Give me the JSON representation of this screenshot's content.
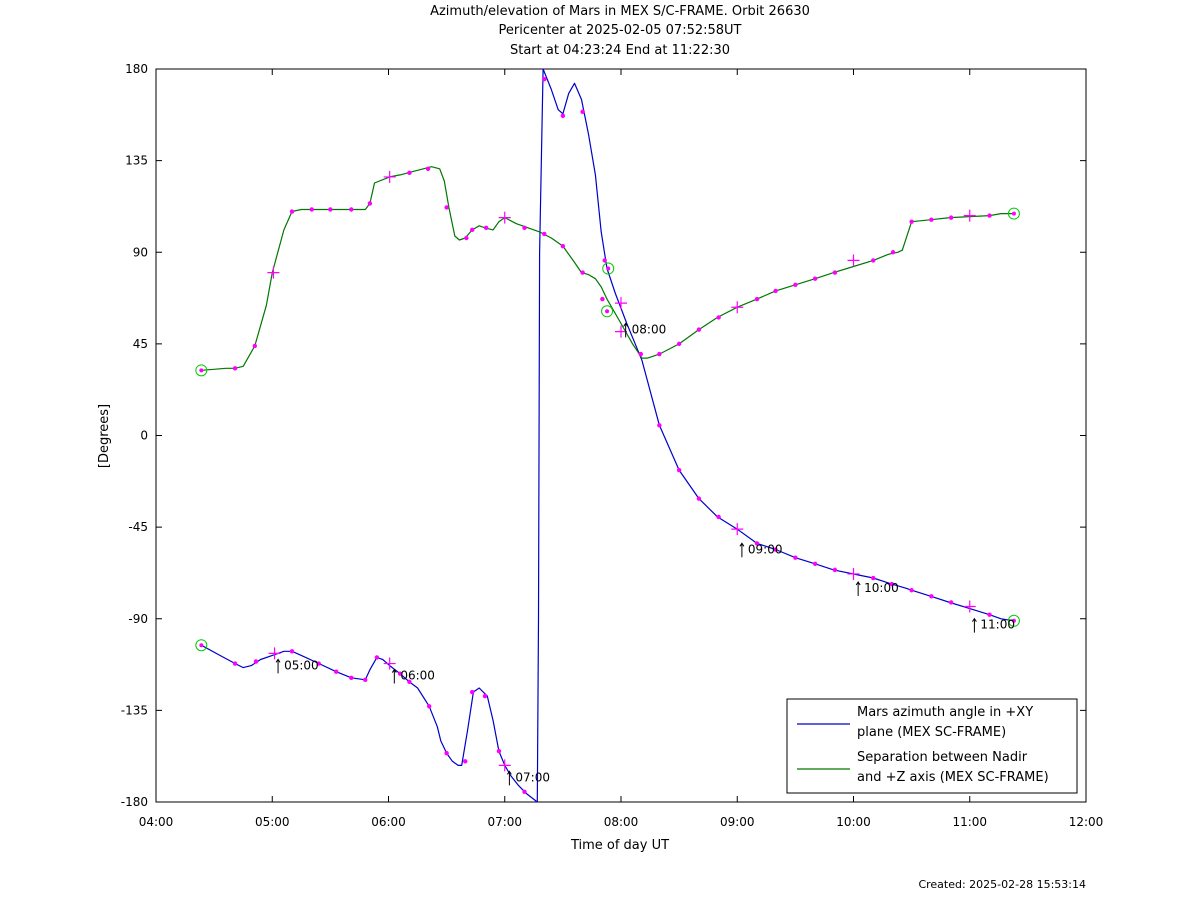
{
  "chart_data": {
    "type": "line",
    "title": [
      "Azimuth/elevation of Mars in MEX S/C-FRAME.  Orbit 26630",
      "Pericenter at 2025-02-05 07:52:58UT",
      "Start at 04:23:24 End at 11:22:30"
    ],
    "xlabel": "Time of day UT",
    "ylabel": "[Degrees]",
    "xlim": [
      4.0,
      12.0
    ],
    "ylim": [
      -180,
      180
    ],
    "xticks": [
      4,
      5,
      6,
      7,
      8,
      9,
      10,
      11,
      12
    ],
    "xtick_labels": [
      "04:00",
      "05:00",
      "06:00",
      "07:00",
      "08:00",
      "09:00",
      "10:00",
      "11:00",
      "12:00"
    ],
    "yticks": [
      180,
      135,
      90,
      45,
      0,
      -45,
      -90,
      -135,
      -180
    ],
    "ytick_labels": [
      "180",
      "135",
      "90",
      "45",
      "0",
      "-45",
      "-90",
      "-135",
      "-180"
    ],
    "grid": false,
    "legend_placement": "bottom-right",
    "series": [
      {
        "name": "Mars azimuth angle in +XY plane (MEX SC-FRAME)",
        "legend_lines": [
          "Mars azimuth angle in +XY",
          "plane (MEX SC-FRAME)"
        ],
        "color": "#0000cc",
        "segments": [
          {
            "x": [
              4.39,
              4.55,
              4.68,
              4.75,
              4.82,
              4.9,
              5.0,
              5.1,
              5.17,
              5.25,
              5.4,
              5.55,
              5.68,
              5.8,
              5.84,
              5.9,
              5.95,
              6.01,
              6.1,
              6.18,
              6.25,
              6.35,
              6.42,
              6.45,
              6.5,
              6.55,
              6.6,
              6.63,
              6.68,
              6.73,
              6.78,
              6.85,
              6.9,
              6.95,
              7.0,
              7.05,
              7.12,
              7.19,
              7.28
            ],
            "y": [
              -103,
              -108,
              -112,
              -114,
              -113,
              -110,
              -108,
              -106,
              -106,
              -108,
              -112,
              -116,
              -119,
              -120,
              -115,
              -109,
              -110,
              -113,
              -117,
              -121,
              -124,
              -133,
              -143,
              -150,
              -156,
              -160,
              -162,
              -162,
              -145,
              -126,
              -124,
              -128,
              -140,
              -155,
              -162,
              -167,
              -172,
              -176,
              -180
            ]
          },
          {
            "x": [
              7.28,
              7.29,
              7.3,
              7.33,
              7.4,
              7.46,
              7.5,
              7.55,
              7.6,
              7.66,
              7.72,
              7.78,
              7.83,
              7.88,
              7.95,
              8.05,
              8.18,
              8.33,
              8.5,
              8.67,
              8.83,
              9.0,
              9.17,
              9.33,
              9.5,
              9.67,
              9.83,
              10.0,
              10.17,
              10.33,
              10.45,
              10.5,
              10.67,
              10.83,
              11.0,
              11.17,
              11.27,
              11.38
            ],
            "y": [
              -180,
              -90,
              90,
              180,
              170,
              160,
              158,
              168,
              173,
              165,
              148,
              128,
              100,
              82,
              70,
              55,
              37,
              5,
              -17,
              -31,
              -40,
              -46,
              -53,
              -56,
              -60,
              -63,
              -66,
              -68,
              -70,
              -73,
              -75,
              -76,
              -79,
              -82,
              -85,
              -88,
              -90,
              -91
            ]
          }
        ]
      },
      {
        "name": "Separation between Nadir and +Z axis (MEX SC-FRAME)",
        "legend_lines": [
          "Separation between Nadir",
          "and +Z axis (MEX SC-FRAME)"
        ],
        "color": "#007700",
        "segments": [
          {
            "x": [
              4.39,
              4.5,
              4.6,
              4.68,
              4.75,
              4.85,
              4.95,
              5.0,
              5.1,
              5.17,
              5.25,
              5.4,
              5.55,
              5.68,
              5.8,
              5.84,
              5.88,
              6.01,
              6.1,
              6.2,
              6.3,
              6.37,
              6.44,
              6.48,
              6.52,
              6.57,
              6.61,
              6.66,
              6.72,
              6.78,
              6.83,
              6.9,
              6.95,
              7.0,
              7.1,
              7.2,
              7.3,
              7.4,
              7.5,
              7.6,
              7.66,
              7.72,
              7.78,
              7.83,
              7.88,
              8.0,
              8.1,
              8.18,
              8.23,
              8.33,
              8.5,
              8.67,
              8.83,
              9.0,
              9.17,
              9.33,
              9.5,
              9.67,
              9.83,
              10.0,
              10.17,
              10.3,
              10.38,
              10.42,
              10.5,
              10.67,
              10.83,
              11.0,
              11.17,
              11.27,
              11.38
            ],
            "y": [
              32,
              32.5,
              33,
              33,
              34,
              44,
              64,
              80,
              101,
              110,
              111,
              111,
              111,
              111,
              111,
              114,
              124,
              127,
              128,
              129.5,
              131,
              132,
              131,
              125,
              112,
              98,
              96,
              97,
              101,
              103,
              102,
              101,
              105,
              107,
              104,
              102,
              100,
              97,
              93,
              85,
              80,
              79,
              77,
              73,
              67,
              55,
              45,
              38,
              38,
              40,
              45,
              52,
              58,
              63,
              67,
              71,
              74,
              77,
              80,
              83,
              86,
              89,
              90,
              91,
              105,
              106,
              107,
              107.5,
              108,
              109,
              109
            ]
          }
        ]
      }
    ],
    "markers": {
      "dots_blue": [
        [
          4.68,
          -112
        ],
        [
          4.86,
          -111
        ],
        [
          5.17,
          -106
        ],
        [
          5.4,
          -112
        ],
        [
          5.55,
          -116
        ],
        [
          5.68,
          -119
        ],
        [
          5.8,
          -120
        ],
        [
          5.9,
          -109
        ],
        [
          6.1,
          -117
        ],
        [
          6.18,
          -121
        ],
        [
          6.35,
          -133
        ],
        [
          6.5,
          -156
        ],
        [
          6.66,
          -160
        ],
        [
          6.72,
          -126
        ],
        [
          6.83,
          -128
        ],
        [
          6.95,
          -155
        ],
        [
          7.17,
          -175
        ],
        [
          7.34,
          175
        ],
        [
          7.5,
          157
        ],
        [
          7.67,
          159
        ],
        [
          7.86,
          86
        ],
        [
          8.17,
          40
        ],
        [
          8.33,
          5
        ],
        [
          8.5,
          -17
        ],
        [
          8.67,
          -31
        ],
        [
          8.84,
          -40
        ],
        [
          9.17,
          -53
        ],
        [
          9.33,
          -56
        ],
        [
          9.5,
          -60
        ],
        [
          9.67,
          -63
        ],
        [
          9.84,
          -66
        ],
        [
          10.17,
          -70
        ],
        [
          10.33,
          -73
        ],
        [
          10.5,
          -76
        ],
        [
          10.67,
          -79
        ],
        [
          10.84,
          -82
        ],
        [
          11.17,
          -88
        ]
      ],
      "plus_blue": [
        [
          5.02,
          -107
        ],
        [
          6.01,
          -112
        ],
        [
          7.0,
          -162
        ],
        [
          8.0,
          51
        ],
        [
          9.0,
          -46
        ],
        [
          10.0,
          -68
        ],
        [
          11.0,
          -84
        ]
      ],
      "dots_green": [
        [
          4.68,
          33
        ],
        [
          4.85,
          44
        ],
        [
          5.17,
          110
        ],
        [
          5.34,
          111
        ],
        [
          5.5,
          111
        ],
        [
          5.68,
          111
        ],
        [
          5.84,
          114
        ],
        [
          6.18,
          129
        ],
        [
          6.34,
          131
        ],
        [
          6.5,
          112
        ],
        [
          6.67,
          97
        ],
        [
          6.72,
          101
        ],
        [
          6.84,
          102
        ],
        [
          7.17,
          102
        ],
        [
          7.34,
          99
        ],
        [
          7.5,
          93
        ],
        [
          7.67,
          80
        ],
        [
          7.84,
          67
        ],
        [
          8.17,
          40
        ],
        [
          8.33,
          40
        ],
        [
          8.5,
          45
        ],
        [
          8.67,
          52
        ],
        [
          8.84,
          58
        ],
        [
          9.17,
          67
        ],
        [
          9.33,
          71
        ],
        [
          9.5,
          74
        ],
        [
          9.67,
          77
        ],
        [
          9.84,
          80
        ],
        [
          10.17,
          86
        ],
        [
          10.34,
          90
        ],
        [
          10.5,
          105
        ],
        [
          10.67,
          106
        ],
        [
          10.84,
          107
        ],
        [
          11.17,
          108
        ]
      ],
      "plus_green": [
        [
          5.01,
          80
        ],
        [
          6.01,
          127
        ],
        [
          7.0,
          107
        ],
        [
          8.0,
          65
        ],
        [
          9.0,
          63
        ],
        [
          10.0,
          86
        ],
        [
          11.0,
          108
        ]
      ],
      "circles": [
        [
          4.39,
          32
        ],
        [
          4.39,
          -103
        ],
        [
          7.89,
          82
        ],
        [
          7.88,
          61
        ],
        [
          11.38,
          109
        ],
        [
          11.38,
          -91
        ]
      ]
    },
    "time_annotations": [
      {
        "label": "05:00",
        "x": 5.05,
        "y": -107
      },
      {
        "label": "06:00",
        "x": 6.05,
        "y": -112
      },
      {
        "label": "07:00",
        "x": 7.04,
        "y": -162
      },
      {
        "label": "08:00",
        "x": 8.04,
        "y": 58
      },
      {
        "label": "09:00",
        "x": 9.04,
        "y": -50
      },
      {
        "label": "10:00",
        "x": 10.04,
        "y": -69
      },
      {
        "label": "11:00",
        "x": 11.04,
        "y": -87
      }
    ]
  },
  "footer": "Created: 2025-02-28 15:53:14"
}
